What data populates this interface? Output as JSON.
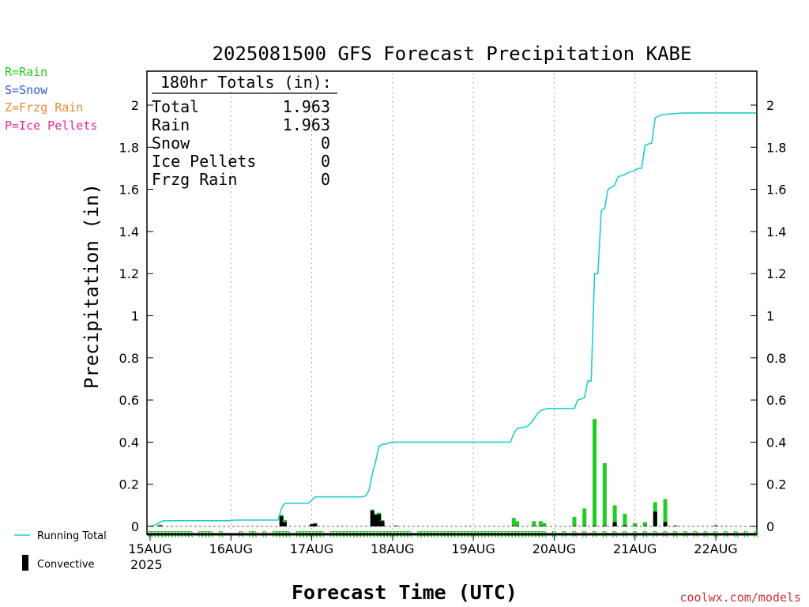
{
  "colors": {
    "rain": "#22cc22",
    "snow": "#3355dd",
    "frzg": "#ee8833",
    "pellets": "#ee2299",
    "running_total": "#22cccc",
    "convective": "#000000",
    "grid": "#aaaaaa",
    "watermark": "#cc3333"
  },
  "legend_left": [
    {
      "label": "R=Rain",
      "color": "#22cc22"
    },
    {
      "label": "S=Snow",
      "color": "#3355dd"
    },
    {
      "label": "Z=Frzg Rain",
      "color": "#ee8833"
    },
    {
      "label": "P=Ice Pellets",
      "color": "#ee2299"
    }
  ],
  "legend_bottom": {
    "running_total": "Running Total",
    "convective": "Convective"
  },
  "watermark": "coolwx.com/models",
  "totals_box": {
    "heading": "180hr Totals (in):",
    "rows": [
      {
        "label": "Total",
        "value": "1.963"
      },
      {
        "label": "Rain",
        "value": "1.963"
      },
      {
        "label": "Snow",
        "value": "0"
      },
      {
        "label": "Ice Pellets",
        "value": "0"
      },
      {
        "label": "Frzg Rain",
        "value": "0"
      }
    ]
  },
  "chart_data": {
    "type": "bar",
    "title": "2025081500 GFS Forecast Precipitation KABE",
    "xlabel": "Forecast Time (UTC)",
    "ylabel": "Precipitation (in)",
    "xlim": [
      0,
      180
    ],
    "ylim": [
      0,
      2.15
    ],
    "x_ticks": [
      {
        "x": 0,
        "label": "15AUG"
      },
      {
        "x": 24,
        "label": "16AUG"
      },
      {
        "x": 48,
        "label": "17AUG"
      },
      {
        "x": 72,
        "label": "18AUG"
      },
      {
        "x": 96,
        "label": "19AUG"
      },
      {
        "x": 120,
        "label": "20AUG"
      },
      {
        "x": 144,
        "label": "21AUG"
      },
      {
        "x": 168,
        "label": "22AUG"
      }
    ],
    "x_year_label": "2025",
    "y_ticks": [
      0,
      0.2,
      0.4,
      0.6,
      0.8,
      1,
      1.2,
      1.4,
      1.6,
      1.8,
      2
    ],
    "y_tick_labels": [
      "0",
      "0.2",
      "0.4",
      "0.6",
      "0.8",
      "1",
      "1.2",
      "1.4",
      "1.6",
      "1.8",
      "2"
    ],
    "grid": "vertical dotted at day boundaries",
    "bar_series": {
      "name": "Rain",
      "points": [
        {
          "x": 3,
          "total": 0.008,
          "convective": 0.004
        },
        {
          "x": 39,
          "total": 0.055,
          "convective": 0.048
        },
        {
          "x": 40,
          "total": 0.03,
          "convective": 0.02
        },
        {
          "x": 48,
          "total": 0.012,
          "convective": 0.01
        },
        {
          "x": 49,
          "total": 0.015,
          "convective": 0.013
        },
        {
          "x": 66,
          "total": 0.08,
          "convective": 0.075
        },
        {
          "x": 67,
          "total": 0.06,
          "convective": 0.055
        },
        {
          "x": 68,
          "total": 0.065,
          "convective": 0.058
        },
        {
          "x": 69,
          "total": 0.03,
          "convective": 0.025
        },
        {
          "x": 73,
          "total": 0.004,
          "convective": 0.002
        },
        {
          "x": 108,
          "total": 0.04,
          "convective": 0.002
        },
        {
          "x": 109,
          "total": 0.025,
          "convective": 0.002
        },
        {
          "x": 114,
          "total": 0.025,
          "convective": 0.002
        },
        {
          "x": 116,
          "total": 0.025,
          "convective": 0.002
        },
        {
          "x": 117,
          "total": 0.015,
          "convective": 0.002
        },
        {
          "x": 126,
          "total": 0.045,
          "convective": 0.002
        },
        {
          "x": 129,
          "total": 0.085,
          "convective": 0.002
        },
        {
          "x": 132,
          "total": 0.51,
          "convective": 0.003
        },
        {
          "x": 135,
          "total": 0.3,
          "convective": 0.003
        },
        {
          "x": 138,
          "total": 0.1,
          "convective": 0.02
        },
        {
          "x": 141,
          "total": 0.06,
          "convective": 0.005
        },
        {
          "x": 144,
          "total": 0.015,
          "convective": 0.002
        },
        {
          "x": 147,
          "total": 0.02,
          "convective": 0.002
        },
        {
          "x": 150,
          "total": 0.115,
          "convective": 0.07
        },
        {
          "x": 153,
          "total": 0.13,
          "convective": 0.02
        },
        {
          "x": 156,
          "total": 0.005,
          "convective": 0.002
        },
        {
          "x": 168,
          "total": 0.005,
          "convective": 0.003
        }
      ]
    },
    "running_total": {
      "name": "Running Total",
      "points": [
        [
          0,
          0
        ],
        [
          1,
          0.005
        ],
        [
          2,
          0.01
        ],
        [
          3,
          0.02
        ],
        [
          4,
          0.027
        ],
        [
          24,
          0.027
        ],
        [
          25,
          0.03
        ],
        [
          38,
          0.03
        ],
        [
          39,
          0.085
        ],
        [
          40,
          0.11
        ],
        [
          47,
          0.11
        ],
        [
          48,
          0.125
        ],
        [
          49,
          0.14
        ],
        [
          63,
          0.14
        ],
        [
          64,
          0.145
        ],
        [
          65,
          0.17
        ],
        [
          66,
          0.25
        ],
        [
          67,
          0.31
        ],
        [
          68,
          0.38
        ],
        [
          69,
          0.39
        ],
        [
          70,
          0.39
        ],
        [
          71,
          0.398
        ],
        [
          72,
          0.4
        ],
        [
          107,
          0.4
        ],
        [
          108,
          0.44
        ],
        [
          109,
          0.465
        ],
        [
          111,
          0.47
        ],
        [
          112,
          0.475
        ],
        [
          113,
          0.49
        ],
        [
          114,
          0.51
        ],
        [
          115,
          0.535
        ],
        [
          116,
          0.55
        ],
        [
          118,
          0.56
        ],
        [
          126,
          0.56
        ],
        [
          127,
          0.6
        ],
        [
          129,
          0.61
        ],
        [
          130,
          0.69
        ],
        [
          131,
          0.69
        ],
        [
          132,
          1.2
        ],
        [
          133,
          1.2
        ],
        [
          134,
          1.5
        ],
        [
          135,
          1.51
        ],
        [
          136,
          1.6
        ],
        [
          137,
          1.61
        ],
        [
          138,
          1.62
        ],
        [
          139,
          1.66
        ],
        [
          141,
          1.67
        ],
        [
          142,
          1.68
        ],
        [
          144,
          1.69
        ],
        [
          145,
          1.7
        ],
        [
          146,
          1.7
        ],
        [
          147,
          1.81
        ],
        [
          149,
          1.82
        ],
        [
          150,
          1.94
        ],
        [
          152,
          1.955
        ],
        [
          156,
          1.96
        ],
        [
          158,
          1.962
        ],
        [
          162,
          1.963
        ],
        [
          180,
          1.963
        ]
      ]
    },
    "ptype_markers": {
      "letter": "R",
      "hours": [
        0,
        1,
        2,
        3,
        4,
        5,
        6,
        7,
        8,
        9,
        10,
        11,
        12,
        15,
        16,
        17,
        18,
        21,
        27,
        30,
        31,
        34,
        37,
        38,
        39,
        40,
        41,
        44,
        45,
        46,
        47,
        48,
        49,
        50,
        51,
        54,
        55,
        56,
        57,
        58,
        59,
        60,
        61,
        62,
        63,
        64,
        65,
        66,
        67,
        68,
        69,
        70,
        71,
        72,
        73,
        74,
        75,
        76,
        77,
        80,
        81,
        82,
        83,
        84,
        85,
        86,
        87,
        88,
        89,
        90,
        91,
        92,
        93,
        94,
        95,
        96,
        97,
        98,
        99,
        100,
        101,
        102,
        103,
        104,
        105,
        106,
        107,
        108,
        109,
        110,
        111,
        112,
        113,
        114,
        115,
        116,
        117,
        120,
        123,
        126,
        129,
        132,
        135,
        138,
        141,
        144,
        147,
        150,
        153,
        156,
        159,
        162,
        165,
        168,
        171,
        174,
        177,
        180
      ]
    }
  }
}
